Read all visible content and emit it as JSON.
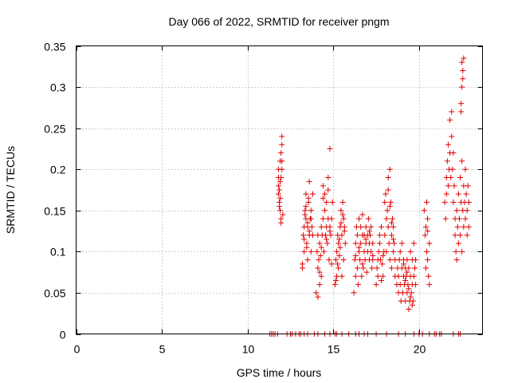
{
  "colors": {
    "series": "#e00000",
    "grid": "#a0a0a0",
    "axis": "#000000",
    "background": "#ffffff"
  },
  "chart_data": {
    "type": "scatter",
    "title": "Day 066 of 2022, SRMTID for receiver pngm",
    "xlabel": "GPS time / hours",
    "ylabel": "SRMTID / TECUs",
    "xlim": [
      0,
      23.7
    ],
    "ylim": [
      0,
      0.35
    ],
    "x_ticks": [
      0,
      5,
      10,
      15,
      20
    ],
    "x_tick_labels": [
      "0",
      "5",
      "10",
      "15",
      "20"
    ],
    "y_ticks": [
      0,
      0.05,
      0.1,
      0.15,
      0.2,
      0.25,
      0.3,
      0.35
    ],
    "y_tick_labels": [
      "0",
      "0.05",
      "0.1",
      "0.15",
      "0.2",
      "0.25",
      "0.3",
      "0.35"
    ],
    "grid": true,
    "marker": "plus",
    "series": [
      {
        "name": "SRMTID",
        "color": "#e00000",
        "x": [
          11.3,
          11.4,
          11.5,
          11.6,
          11.75,
          12.3,
          12.5,
          12.6,
          12.8,
          13.0,
          13.1,
          13.3,
          13.5,
          13.9,
          14.1,
          14.5,
          14.8,
          15.1,
          15.2,
          15.5,
          15.9,
          16.3,
          16.5,
          16.8,
          17.0,
          17.5,
          18.1,
          18.8,
          19.2,
          19.7,
          20.0,
          20.2,
          20.6,
          20.9,
          21.0,
          21.2,
          21.3,
          22.0,
          22.3,
          22.4,
          11.8,
          11.8,
          11.85,
          11.85,
          11.9,
          11.9,
          11.95,
          11.95,
          12.0,
          12.0,
          12.0,
          11.9,
          11.85,
          11.8,
          11.95,
          12.05,
          11.9,
          11.8,
          12.0,
          11.95,
          13.2,
          13.25,
          13.3,
          13.3,
          13.35,
          13.4,
          13.4,
          13.45,
          13.5,
          13.5,
          13.55,
          13.6,
          13.6,
          13.65,
          13.7,
          13.7,
          13.75,
          13.8,
          13.8,
          13.2,
          13.3,
          13.4,
          13.5,
          13.6,
          13.7,
          13.55,
          13.45,
          13.35,
          14.0,
          14.05,
          14.1,
          14.1,
          14.15,
          14.2,
          14.2,
          14.25,
          14.3,
          14.3,
          14.35,
          14.4,
          14.4,
          14.45,
          14.5,
          14.5,
          14.55,
          14.6,
          14.6,
          14.65,
          14.7,
          14.7,
          14.75,
          14.8,
          14.8,
          14.85,
          14.9,
          14.9,
          14.1,
          14.2,
          14.3,
          14.4,
          14.6,
          14.7,
          14.8,
          14.95,
          15.1,
          15.15,
          15.2,
          15.2,
          15.25,
          15.3,
          15.3,
          15.35,
          15.4,
          15.4,
          15.45,
          15.5,
          15.5,
          15.55,
          15.6,
          15.6,
          15.65,
          15.7,
          15.15,
          15.25,
          15.35,
          15.45,
          15.55,
          15.65,
          16.2,
          16.25,
          16.3,
          16.3,
          16.35,
          16.4,
          16.4,
          16.45,
          16.5,
          16.5,
          16.55,
          16.6,
          16.6,
          16.65,
          16.7,
          16.7,
          16.75,
          16.8,
          16.8,
          16.85,
          16.9,
          16.9,
          16.95,
          17.0,
          17.0,
          17.05,
          17.1,
          17.1,
          17.15,
          17.2,
          17.2,
          17.25,
          17.3,
          17.3,
          16.3,
          16.5,
          16.7,
          16.9,
          17.1,
          17.3,
          17.5,
          17.55,
          17.6,
          17.6,
          17.65,
          17.7,
          17.7,
          17.75,
          17.8,
          17.8,
          17.85,
          17.9,
          17.9,
          17.95,
          18.0,
          18.0,
          18.05,
          18.1,
          18.1,
          18.15,
          18.2,
          18.2,
          18.25,
          18.3,
          18.3,
          18.35,
          18.4,
          18.4,
          18.45,
          18.5,
          18.5,
          18.55,
          18.6,
          18.6,
          18.2,
          18.3,
          18.4,
          18.5,
          18.7,
          18.75,
          18.8,
          18.8,
          18.85,
          18.9,
          18.9,
          18.95,
          19.0,
          19.0,
          19.05,
          19.1,
          19.1,
          19.15,
          19.2,
          19.2,
          19.25,
          19.3,
          19.3,
          19.35,
          19.4,
          19.4,
          19.45,
          19.5,
          19.5,
          19.55,
          19.6,
          19.6,
          19.65,
          19.7,
          19.7,
          19.75,
          19.8,
          19.8,
          19.1,
          19.2,
          19.3,
          19.4,
          19.5,
          19.6,
          20.3,
          20.35,
          20.4,
          20.4,
          20.45,
          20.5,
          20.5,
          20.55,
          20.6,
          20.6,
          20.45,
          20.5,
          21.5,
          21.55,
          21.6,
          21.6,
          21.65,
          21.7,
          21.7,
          21.75,
          21.8,
          21.8,
          21.85,
          21.9,
          21.9,
          21.95,
          22.0,
          22.0,
          22.05,
          22.1,
          22.1,
          22.15,
          22.2,
          22.2,
          22.25,
          22.3,
          22.3,
          22.35,
          22.4,
          22.4,
          22.45,
          22.5,
          22.5,
          22.55,
          22.6,
          22.6,
          22.65,
          22.7,
          22.7,
          22.75,
          22.8,
          22.8,
          22.85,
          22.9,
          22.9,
          22.45,
          22.5,
          22.55,
          22.5,
          22.45,
          22.6,
          22.55
        ],
        "y": [
          0,
          0,
          0,
          0,
          0,
          0,
          0,
          0,
          0,
          0,
          0,
          0,
          0,
          0,
          0,
          0,
          0,
          0,
          0,
          0,
          0,
          0,
          0,
          0,
          0,
          0,
          0,
          0,
          0,
          0,
          0,
          0,
          0,
          0,
          0,
          0,
          0,
          0,
          0,
          0,
          0.19,
          0.17,
          0.16,
          0.175,
          0.21,
          0.15,
          0.22,
          0.14,
          0.2,
          0.24,
          0.23,
          0.185,
          0.155,
          0.18,
          0.135,
          0.145,
          0.165,
          0.2,
          0.21,
          0.19,
          0.08,
          0.12,
          0.13,
          0.1,
          0.15,
          0.14,
          0.17,
          0.11,
          0.13,
          0.09,
          0.16,
          0.12,
          0.185,
          0.14,
          0.15,
          0.1,
          0.13,
          0.17,
          0.12,
          0.085,
          0.115,
          0.155,
          0.135,
          0.125,
          0.14,
          0.165,
          0.105,
          0.145,
          0.05,
          0.1,
          0.08,
          0.12,
          0.09,
          0.06,
          0.11,
          0.095,
          0.13,
          0.07,
          0.12,
          0.18,
          0.14,
          0.1,
          0.15,
          0.17,
          0.12,
          0.16,
          0.13,
          0.11,
          0.19,
          0.14,
          0.09,
          0.13,
          0.225,
          0.12,
          0.085,
          0.14,
          0.045,
          0.075,
          0.105,
          0.165,
          0.115,
          0.175,
          0.125,
          0.16,
          0.06,
          0.09,
          0.1,
          0.07,
          0.12,
          0.08,
          0.11,
          0.095,
          0.13,
          0.105,
          0.15,
          0.07,
          0.12,
          0.16,
          0.14,
          0.09,
          0.13,
          0.11,
          0.065,
          0.085,
          0.115,
          0.135,
          0.145,
          0.125,
          0.05,
          0.09,
          0.11,
          0.07,
          0.13,
          0.08,
          0.12,
          0.06,
          0.1,
          0.14,
          0.09,
          0.11,
          0.13,
          0.07,
          0.12,
          0.145,
          0.08,
          0.1,
          0.12,
          0.09,
          0.11,
          0.13,
          0.075,
          0.1,
          0.12,
          0.14,
          0.09,
          0.11,
          0.12,
          0.1,
          0.13,
          0.08,
          0.11,
          0.09,
          0.095,
          0.105,
          0.085,
          0.115,
          0.125,
          0.095,
          0.06,
          0.08,
          0.09,
          0.07,
          0.1,
          0.12,
          0.11,
          0.09,
          0.13,
          0.065,
          0.085,
          0.095,
          0.07,
          0.1,
          0.16,
          0.12,
          0.17,
          0.14,
          0.1,
          0.15,
          0.13,
          0.19,
          0.11,
          0.09,
          0.2,
          0.16,
          0.12,
          0.08,
          0.14,
          0.1,
          0.13,
          0.11,
          0.09,
          0.07,
          0.175,
          0.155,
          0.135,
          0.115,
          0.06,
          0.08,
          0.05,
          0.07,
          0.09,
          0.06,
          0.1,
          0.04,
          0.08,
          0.11,
          0.05,
          0.07,
          0.09,
          0.06,
          0.08,
          0.04,
          0.07,
          0.05,
          0.09,
          0.06,
          0.03,
          0.08,
          0.04,
          0.07,
          0.1,
          0.05,
          0.06,
          0.09,
          0.04,
          0.07,
          0.11,
          0.08,
          0.06,
          0.09,
          0.085,
          0.065,
          0.075,
          0.055,
          0.045,
          0.035,
          0.15,
          0.12,
          0.08,
          0.13,
          0.16,
          0.09,
          0.14,
          0.07,
          0.11,
          0.06,
          0.1,
          0.125,
          0.16,
          0.14,
          0.19,
          0.17,
          0.21,
          0.18,
          0.23,
          0.2,
          0.26,
          0.22,
          0.19,
          0.24,
          0.27,
          0.2,
          0.16,
          0.22,
          0.18,
          0.14,
          0.12,
          0.1,
          0.09,
          0.15,
          0.13,
          0.11,
          0.17,
          0.14,
          0.19,
          0.12,
          0.16,
          0.21,
          0.1,
          0.15,
          0.18,
          0.13,
          0.16,
          0.2,
          0.14,
          0.17,
          0.12,
          0.15,
          0.18,
          0.13,
          0.16,
          0.28,
          0.33,
          0.32,
          0.3,
          0.27,
          0.335,
          0.31
        ]
      }
    ]
  }
}
